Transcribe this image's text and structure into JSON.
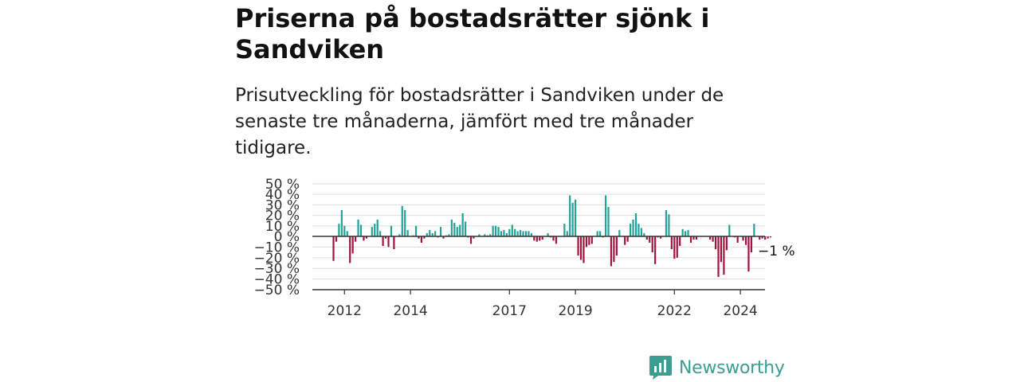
{
  "header": {
    "title": "Priserna på bostadsrätter sjönk i Sandviken",
    "subtitle": "Prisutveckling för bostadsrätter i Sandviken under de senaste tre månaderna, jämfört med tre månader tidigare."
  },
  "chart_data": {
    "type": "bar",
    "title": "",
    "xlabel": "",
    "ylabel": "",
    "ylim": [
      -50,
      50
    ],
    "yticks": [
      {
        "value": 50,
        "label": "50 %"
      },
      {
        "value": 40,
        "label": "40 %"
      },
      {
        "value": 30,
        "label": "30 %"
      },
      {
        "value": 20,
        "label": "20 %"
      },
      {
        "value": 10,
        "label": "10 %"
      },
      {
        "value": 0,
        "label": "0 %"
      },
      {
        "value": -10,
        "label": "−10 %"
      },
      {
        "value": -20,
        "label": "−20 %"
      },
      {
        "value": -30,
        "label": "−30 %"
      },
      {
        "value": -40,
        "label": "−40 %"
      },
      {
        "value": -50,
        "label": "−50 %"
      }
    ],
    "xticks": [
      {
        "label": "2012",
        "index": 4
      },
      {
        "label": "2014",
        "index": 28
      },
      {
        "label": "2017",
        "index": 64
      },
      {
        "label": "2019",
        "index": 88
      },
      {
        "label": "2022",
        "index": 124
      },
      {
        "label": "2024",
        "index": 148
      }
    ],
    "grid": true,
    "colors": {
      "positive": "#1fa39a",
      "negative": "#a3133e",
      "grid": "#dddddd",
      "axis": "#333333"
    },
    "last_value_label": "−1 %",
    "values": [
      -23,
      -5,
      12,
      25,
      10,
      5,
      -25,
      -16,
      -5,
      16,
      11,
      -4,
      -2,
      0,
      9,
      12,
      16,
      5,
      -9,
      -2,
      -10,
      10,
      -12,
      0,
      2,
      29,
      25,
      6,
      0,
      1,
      10,
      -2,
      -6,
      -2,
      3,
      6,
      3,
      5,
      -1,
      9,
      -2,
      1,
      2,
      16,
      13,
      9,
      11,
      22,
      14,
      -1,
      -7,
      -2,
      0,
      2,
      0,
      2,
      1,
      2,
      10,
      10,
      9,
      5,
      6,
      3,
      7,
      11,
      7,
      5,
      6,
      5,
      5,
      5,
      3,
      -4,
      -5,
      -4,
      -3,
      0,
      3,
      -1,
      -4,
      -7,
      0,
      0,
      12,
      5,
      39,
      32,
      35,
      -18,
      -22,
      -25,
      -10,
      -8,
      -7,
      0,
      5,
      5,
      -1,
      39,
      28,
      -28,
      -24,
      -18,
      6,
      0,
      -8,
      -5,
      12,
      16,
      22,
      12,
      8,
      3,
      -3,
      -6,
      -15,
      -26,
      -1,
      -2,
      0,
      25,
      21,
      -12,
      -21,
      -20,
      -9,
      7,
      5,
      6,
      -6,
      -3,
      -3,
      0,
      0,
      0,
      0,
      -3,
      -5,
      -12,
      -38,
      -24,
      -36,
      -13,
      11,
      0,
      -1,
      -6,
      0,
      -4,
      -8,
      -33,
      -15,
      12,
      0,
      -3,
      -2,
      -3,
      -2,
      -1
    ]
  },
  "brand": {
    "name": "Newsworthy",
    "icon": "newsworthy-logo-icon",
    "color": "#3c9e93"
  }
}
